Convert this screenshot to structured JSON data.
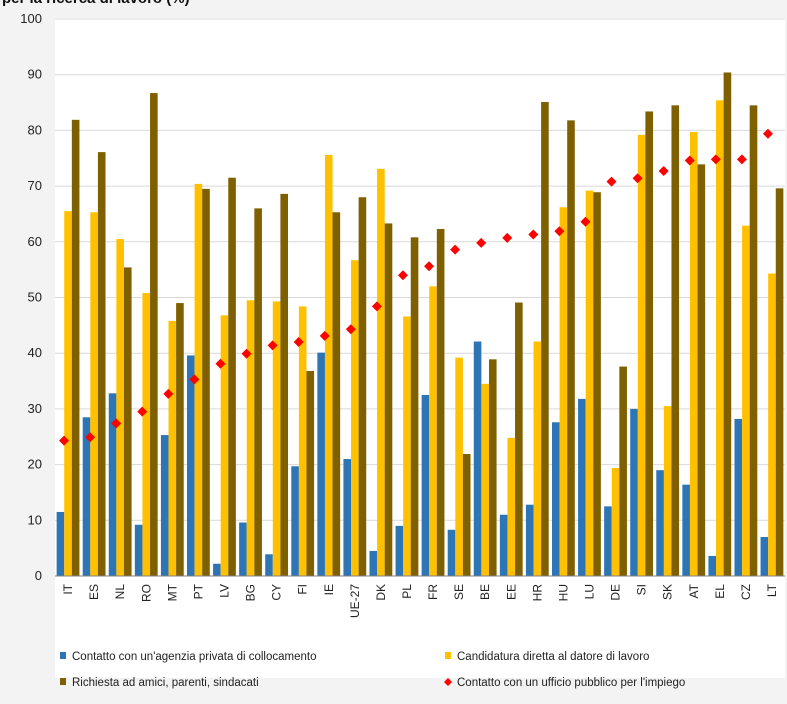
{
  "header": {
    "title": "per la ricerca di lavoro (%)"
  },
  "colors": {
    "private_agency": "#2e75b6",
    "direct_application": "#ffc000",
    "friends_relatives": "#7f6000",
    "public_office": "#ff0000",
    "grid": "#d9d9d9",
    "axis": "#808080"
  },
  "chart_data": {
    "type": "bar",
    "title": "per la ricerca di lavoro (%)",
    "xlabel": "",
    "ylabel": "",
    "ylim": [
      0,
      100
    ],
    "yticks": [
      0,
      10,
      20,
      30,
      40,
      50,
      60,
      70,
      80,
      90,
      100
    ],
    "grid": true,
    "legend_position": "bottom",
    "categories": [
      "IT",
      "ES",
      "NL",
      "RO",
      "MT",
      "PT",
      "LV",
      "BG",
      "CY",
      "FI",
      "IE",
      "UE-27",
      "DK",
      "PL",
      "FR",
      "SE",
      "BE",
      "EE",
      "HR",
      "HU",
      "LU",
      "DE",
      "SI",
      "SK",
      "AT",
      "EL",
      "CZ",
      "LT"
    ],
    "series": [
      {
        "name": "Contatto con un'agenzia privata di collocamento",
        "kind": "bar",
        "color": "#2e75b6",
        "values": [
          11.5,
          28.5,
          32.8,
          9.2,
          25.3,
          39.6,
          2.2,
          9.6,
          3.9,
          19.7,
          40.1,
          21.0,
          4.5,
          9.0,
          32.5,
          8.3,
          42.1,
          11.0,
          12.8,
          27.6,
          31.8,
          12.5,
          30.0,
          19.0,
          16.4,
          3.6,
          28.2,
          7.0
        ]
      },
      {
        "name": "Candidatura diretta al datore di lavoro",
        "kind": "bar",
        "color": "#ffc000",
        "values": [
          65.5,
          65.3,
          60.5,
          50.8,
          45.8,
          70.4,
          46.8,
          49.5,
          49.3,
          48.4,
          75.6,
          56.7,
          73.1,
          46.6,
          52.0,
          39.2,
          34.5,
          24.8,
          42.1,
          66.2,
          69.2,
          19.4,
          79.2,
          30.5,
          79.7,
          85.4,
          62.9,
          54.3
        ]
      },
      {
        "name": "Richiesta ad amici, parenti, sindacati",
        "kind": "bar",
        "color": "#7f6000",
        "values": [
          81.9,
          76.1,
          55.4,
          86.7,
          49.0,
          69.5,
          71.5,
          66.0,
          68.6,
          36.8,
          65.3,
          68.0,
          63.3,
          60.8,
          62.3,
          21.9,
          38.9,
          49.1,
          85.1,
          81.8,
          68.9,
          37.6,
          83.4,
          84.5,
          73.9,
          90.4,
          84.5,
          69.6
        ]
      },
      {
        "name": "Contatto con un ufficio pubblico per l'impiego",
        "kind": "marker",
        "color": "#ff0000",
        "values": [
          24.3,
          24.9,
          27.4,
          29.5,
          32.7,
          35.3,
          38.1,
          39.9,
          41.4,
          42.0,
          43.1,
          44.3,
          48.4,
          54.0,
          55.6,
          58.6,
          59.8,
          60.7,
          61.3,
          61.9,
          63.6,
          70.8,
          71.4,
          72.7,
          74.6,
          74.8,
          74.8,
          79.4
        ]
      }
    ]
  }
}
